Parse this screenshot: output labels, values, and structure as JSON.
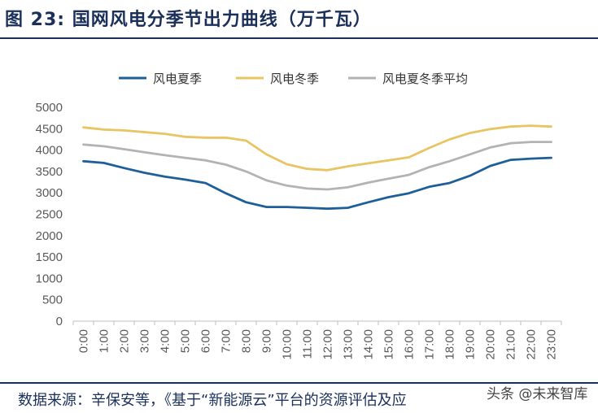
{
  "figure": {
    "title": "图 23: 国网风电分季节出力曲线（万千瓦）",
    "source": "数据来源：辛保安等，《基于“新能源云”平台的资源评估及应",
    "watermark": "头条 @未来智库"
  },
  "chart_data": {
    "type": "line",
    "title": "",
    "xlabel": "",
    "ylabel": "",
    "ylim": [
      0,
      5000
    ],
    "yticks": [
      0,
      500,
      1000,
      1500,
      2000,
      2500,
      3000,
      3500,
      4000,
      4500,
      5000
    ],
    "grid": false,
    "legend_position": "top",
    "categories": [
      "0:00",
      "1:00",
      "2:00",
      "3:00",
      "4:00",
      "5:00",
      "6:00",
      "7:00",
      "8:00",
      "9:00",
      "10:00",
      "11:00",
      "12:00",
      "13:00",
      "14:00",
      "15:00",
      "16:00",
      "17:00",
      "18:00",
      "19:00",
      "20:00",
      "21:00",
      "22:00",
      "23:00"
    ],
    "series": [
      {
        "name": "风电夏季",
        "color": "#1f5f99",
        "values": [
          3740,
          3700,
          3580,
          3470,
          3380,
          3310,
          3230,
          2990,
          2780,
          2670,
          2670,
          2650,
          2630,
          2650,
          2780,
          2900,
          2990,
          3140,
          3230,
          3400,
          3630,
          3770,
          3800,
          3820
        ]
      },
      {
        "name": "风电冬季",
        "color": "#e8c462",
        "values": [
          4530,
          4480,
          4460,
          4420,
          4380,
          4310,
          4290,
          4290,
          4220,
          3900,
          3670,
          3560,
          3530,
          3620,
          3690,
          3760,
          3830,
          4050,
          4250,
          4400,
          4490,
          4550,
          4570,
          4550
        ]
      },
      {
        "name": "风电夏冬季平均",
        "color": "#b3b3b3",
        "values": [
          4130,
          4090,
          4020,
          3950,
          3880,
          3820,
          3760,
          3660,
          3500,
          3290,
          3170,
          3100,
          3080,
          3130,
          3240,
          3330,
          3420,
          3600,
          3740,
          3900,
          4060,
          4160,
          4190,
          4190
        ]
      }
    ]
  }
}
